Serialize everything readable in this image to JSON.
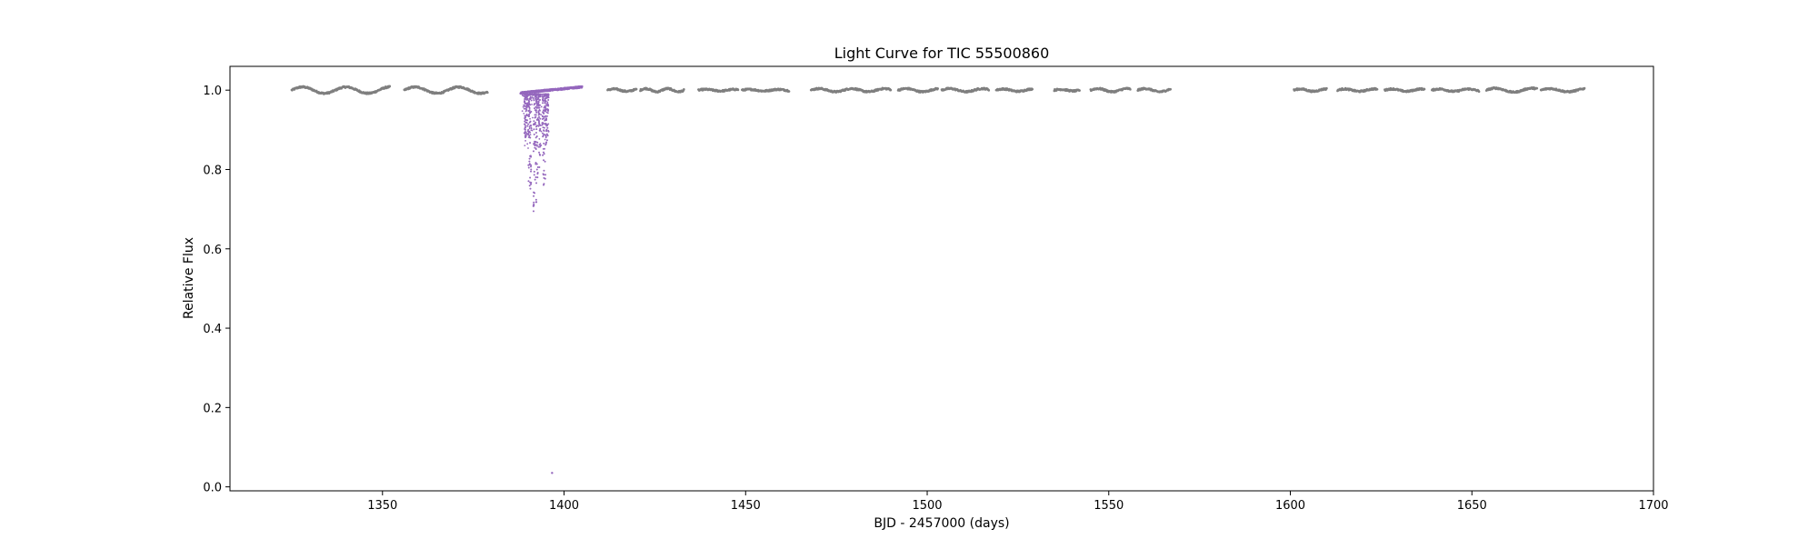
{
  "chart_data": {
    "type": "scatter",
    "title": "Light Curve for TIC 55500860",
    "xlabel": "BJD - 2457000 (days)",
    "ylabel": "Relative Flux",
    "xlim": [
      1308,
      1700
    ],
    "ylim": [
      -0.01,
      1.06
    ],
    "x_ticks": [
      1350,
      1400,
      1450,
      1500,
      1550,
      1600,
      1650,
      1700
    ],
    "y_ticks": [
      0.0,
      0.2,
      0.4,
      0.6,
      0.8,
      1.0
    ],
    "grid": false,
    "colors": {
      "baseline": "#7f7f7f",
      "highlight": "#9467bd"
    },
    "series": [
      {
        "color": "#7f7f7f",
        "segments": [
          {
            "x_start": 1325,
            "x_end": 1352,
            "level": 1.0,
            "amplitude": 0.008,
            "period": 12
          },
          {
            "x_start": 1356,
            "x_end": 1379,
            "level": 1.0,
            "amplitude": 0.008,
            "period": 12
          },
          {
            "x_start": 1412,
            "x_end": 1420,
            "level": 1.0,
            "amplitude": 0.003,
            "period": 7
          },
          {
            "x_start": 1421,
            "x_end": 1433,
            "level": 1.0,
            "amplitude": 0.004,
            "period": 6
          },
          {
            "x_start": 1437,
            "x_end": 1448,
            "level": 1.0,
            "amplitude": 0.002,
            "period": 8
          },
          {
            "x_start": 1449,
            "x_end": 1462,
            "level": 1.0,
            "amplitude": 0.002,
            "period": 8
          },
          {
            "x_start": 1468,
            "x_end": 1490,
            "level": 1.0,
            "amplitude": 0.004,
            "period": 9
          },
          {
            "x_start": 1492,
            "x_end": 1503,
            "level": 1.0,
            "amplitude": 0.004,
            "period": 9
          },
          {
            "x_start": 1504,
            "x_end": 1517,
            "level": 1.0,
            "amplitude": 0.004,
            "period": 9
          },
          {
            "x_start": 1519,
            "x_end": 1529,
            "level": 1.0,
            "amplitude": 0.003,
            "period": 8
          },
          {
            "x_start": 1535,
            "x_end": 1542,
            "level": 1.0,
            "amplitude": 0.002,
            "period": 7
          },
          {
            "x_start": 1545,
            "x_end": 1556,
            "level": 1.0,
            "amplitude": 0.004,
            "period": 8
          },
          {
            "x_start": 1558,
            "x_end": 1567,
            "level": 1.0,
            "amplitude": 0.004,
            "period": 8
          },
          {
            "x_start": 1601,
            "x_end": 1610,
            "level": 1.0,
            "amplitude": 0.003,
            "period": 7
          },
          {
            "x_start": 1613,
            "x_end": 1624,
            "level": 1.0,
            "amplitude": 0.003,
            "period": 8
          },
          {
            "x_start": 1626,
            "x_end": 1637,
            "level": 1.0,
            "amplitude": 0.003,
            "period": 8
          },
          {
            "x_start": 1639,
            "x_end": 1652,
            "level": 1.0,
            "amplitude": 0.003,
            "period": 8
          },
          {
            "x_start": 1654,
            "x_end": 1668,
            "level": 1.0,
            "amplitude": 0.005,
            "period": 10
          },
          {
            "x_start": 1669,
            "x_end": 1681,
            "level": 1.0,
            "amplitude": 0.004,
            "period": 10
          }
        ]
      },
      {
        "color": "#9467bd",
        "baseline": {
          "x_start": 1388,
          "x_end": 1405,
          "y_start": 0.993,
          "y_end": 1.008
        },
        "dip_columns": [
          {
            "x": 1389.5,
            "y_min": 0.88
          },
          {
            "x": 1390.5,
            "y_min": 0.74
          },
          {
            "x": 1392.0,
            "y_min": 0.69
          },
          {
            "x": 1393.0,
            "y_min": 0.78
          },
          {
            "x": 1394.5,
            "y_min": 0.75
          },
          {
            "x": 1395.3,
            "y_min": 0.86
          }
        ],
        "outliers": [
          {
            "x": 1396.7,
            "y": 0.035
          }
        ]
      }
    ]
  }
}
